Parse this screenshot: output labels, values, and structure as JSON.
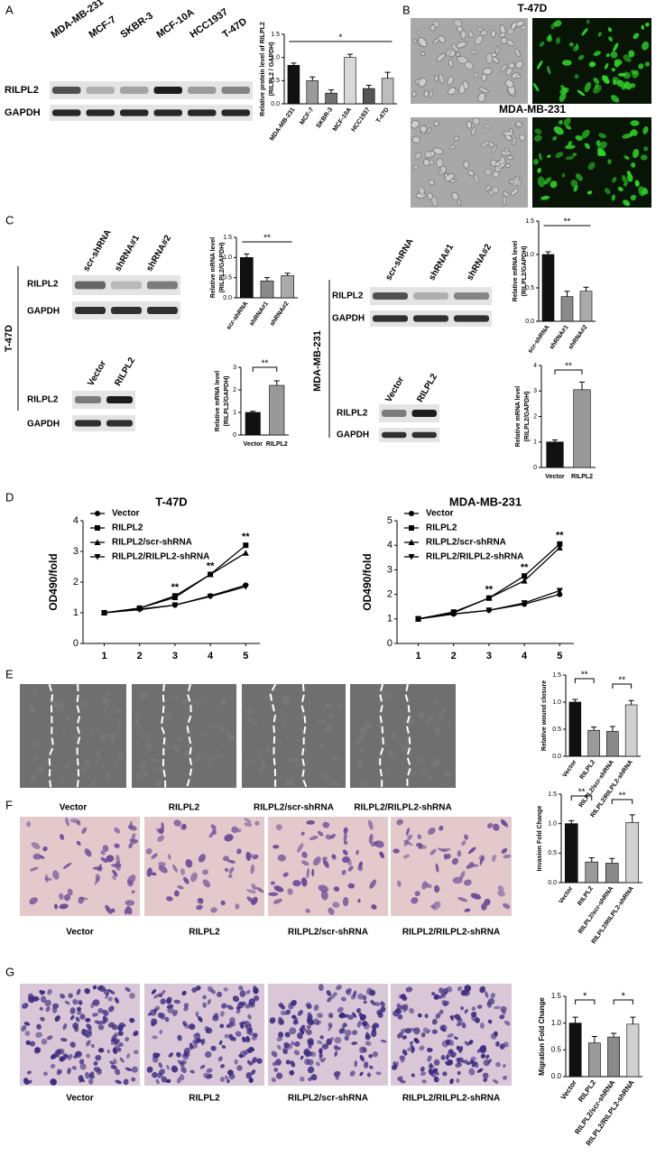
{
  "figure": {
    "panel_labels": [
      "A",
      "B",
      "C",
      "D",
      "E",
      "F",
      "G"
    ],
    "a_blot": {
      "lanes": [
        "MDA-MB-231",
        "MCF-7",
        "SKBR-3",
        "MCF-10A",
        "HCC1937",
        "T-47D"
      ],
      "rows": [
        "RILPL2",
        "GAPDH"
      ]
    },
    "b_images": {
      "titles": [
        "T-47D",
        "MDA-MB-231"
      ]
    },
    "c_blots": {
      "cell_lines": [
        "T-47D",
        "MDA-MB-231"
      ],
      "knockdown_lanes": [
        "scr-shRNA",
        "shRNA#1",
        "shRNA#2"
      ],
      "overexpression_lanes": [
        "Vector",
        "RILPL2"
      ],
      "rows": [
        "RILPL2",
        "GAPDH"
      ]
    },
    "captions": [
      "Vector",
      "RILPL2",
      "RILPL2/scr-shRNA",
      "RILPL2/RILPL2-shRNA"
    ]
  },
  "chart_data": [
    {
      "type": "bar",
      "categories": [
        "MDA-MB-231",
        "MCF-7",
        "SKBR-3",
        "MCF-10A",
        "HCC1937",
        "T-47D"
      ],
      "values": [
        0.83,
        0.5,
        0.23,
        1.0,
        0.33,
        0.55
      ],
      "errors": [
        0.05,
        0.08,
        0.07,
        0.07,
        0.07,
        0.13
      ],
      "colors": [
        "#111111",
        "#9a9a9a",
        "#707070",
        "#d8d8d8",
        "#555555",
        "#bdbdbd"
      ],
      "ylabel": [
        "Relative protein level of RILPL2",
        "(RILPL2 / GAPDH)"
      ],
      "ylim": [
        0,
        1.5
      ],
      "yticks": [
        {
          "value": 0,
          "label": "0.0"
        },
        0.5,
        {
          "value": 1,
          "label": "1.0"
        },
        1.5
      ],
      "annotations": [
        "*"
      ]
    },
    {
      "type": "bar",
      "categories": [
        "scr-shRNA",
        "shRNA#1",
        "shRNA#2"
      ],
      "values": [
        1.0,
        0.42,
        0.55
      ],
      "errors": [
        0.09,
        0.08,
        0.06
      ],
      "colors": [
        "#111111",
        "#8a8a8a",
        "#aaaaaa"
      ],
      "ylabel": [
        "Relative mRNA level",
        "(RILPL2/GAPDH)"
      ],
      "ylim": [
        0,
        1.5
      ],
      "yticks": [
        {
          "value": 0,
          "label": "0.0"
        },
        0.5,
        {
          "value": 1,
          "label": "1.0"
        },
        1.5
      ],
      "annotations": [
        "**"
      ]
    },
    {
      "type": "bar",
      "categories": [
        "Vector",
        "RILPL2"
      ],
      "values": [
        1.0,
        2.2
      ],
      "errors": [
        0.05,
        0.2
      ],
      "colors": [
        "#111111",
        "#999999"
      ],
      "ylabel": [
        "Relative mRNA level",
        "(RILPL2/GAPDH)"
      ],
      "ylim": [
        0,
        3
      ],
      "yticks": [
        0,
        1,
        2,
        3
      ],
      "annotations": [
        "**"
      ]
    },
    {
      "type": "bar",
      "categories": [
        "scr-shRNA",
        "shRNA#1",
        "shRNA#2"
      ],
      "values": [
        1.0,
        0.37,
        0.45
      ],
      "errors": [
        0.04,
        0.08,
        0.06
      ],
      "colors": [
        "#111111",
        "#8a8a8a",
        "#aaaaaa"
      ],
      "ylabel": [
        "Relative mRNA level",
        "(RILPL2/GAPDH)"
      ],
      "ylim": [
        0,
        1.5
      ],
      "yticks": [
        {
          "value": 0,
          "label": "0.0"
        },
        0.5,
        {
          "value": 1,
          "label": "1.0"
        },
        1.5
      ],
      "annotations": [
        "**"
      ]
    },
    {
      "type": "bar",
      "categories": [
        "Vector",
        "RILPL2"
      ],
      "values": [
        1.0,
        3.05
      ],
      "errors": [
        0.08,
        0.3
      ],
      "colors": [
        "#111111",
        "#999999"
      ],
      "ylabel": [
        "Relative mRNA level",
        "(RILPL2/GAPDH)"
      ],
      "ylim": [
        0,
        4
      ],
      "yticks": [
        0,
        1,
        2,
        3,
        4
      ],
      "annotations": [
        "**"
      ]
    },
    {
      "type": "line",
      "title": "T-47D",
      "x": [
        1,
        2,
        3,
        4,
        5
      ],
      "xlim": [
        0.4,
        5.4
      ],
      "xticks": [
        1,
        2,
        3,
        4,
        5
      ],
      "ylim": [
        0,
        4
      ],
      "yticks": [
        0,
        1,
        2,
        3,
        4
      ],
      "ylabel": "OD490/fold",
      "series": [
        {
          "name": "Vector",
          "color": "#000000",
          "marker": "circle",
          "values": [
            1.0,
            1.12,
            1.25,
            1.55,
            1.9
          ]
        },
        {
          "name": "RILPL2",
          "color": "#000000",
          "marker": "square",
          "values": [
            1.0,
            1.15,
            1.55,
            2.25,
            3.2
          ]
        },
        {
          "name": "RILPL2/scr-shRNA",
          "color": "#000000",
          "marker": "triangle-up",
          "values": [
            1.0,
            1.15,
            1.5,
            2.25,
            2.95
          ]
        },
        {
          "name": "RILPL2/RILPL2-shRNA",
          "color": "#000000",
          "marker": "triangle-down",
          "values": [
            1.0,
            1.1,
            1.25,
            1.53,
            1.85
          ]
        }
      ],
      "annotations": [
        {
          "x": 3,
          "text": "**"
        },
        {
          "x": 4,
          "text": "**"
        },
        {
          "x": 5,
          "text": "**"
        }
      ]
    },
    {
      "type": "line",
      "title": "MDA-MB-231",
      "x": [
        1,
        2,
        3,
        4,
        5
      ],
      "xlim": [
        0.4,
        5.4
      ],
      "xticks": [
        1,
        2,
        3,
        4,
        5
      ],
      "ylim": [
        0,
        5
      ],
      "yticks": [
        0,
        1,
        2,
        3,
        4,
        5
      ],
      "ylabel": "OD490/fold",
      "series": [
        {
          "name": "Vector",
          "color": "#000000",
          "marker": "circle",
          "values": [
            1.0,
            1.2,
            1.35,
            1.6,
            2.0
          ]
        },
        {
          "name": "RILPL2",
          "color": "#000000",
          "marker": "square",
          "values": [
            1.0,
            1.28,
            1.85,
            2.75,
            4.05
          ]
        },
        {
          "name": "RILPL2/scr-shRNA",
          "color": "#000000",
          "marker": "triangle-up",
          "values": [
            1.0,
            1.25,
            1.85,
            2.55,
            3.9
          ]
        },
        {
          "name": "RILPL2/RILPL2-shRNA",
          "color": "#000000",
          "marker": "triangle-down",
          "values": [
            1.0,
            1.2,
            1.35,
            1.65,
            2.15
          ]
        }
      ],
      "annotations": [
        {
          "x": 3,
          "text": "**"
        },
        {
          "x": 4,
          "text": "**"
        },
        {
          "x": 5,
          "text": "**"
        }
      ]
    },
    {
      "type": "bar",
      "categories": [
        "Vector",
        "RILPL2",
        "RILPL2/scr-shRNA",
        "RILPL2/RILPL2-shRNA"
      ],
      "values": [
        1.0,
        0.48,
        0.46,
        0.95
      ],
      "errors": [
        0.05,
        0.06,
        0.09,
        0.08
      ],
      "colors": [
        "#111111",
        "#9a9a9a",
        "#8a8a8a",
        "#d0d0d0"
      ],
      "ylabel": [
        "Relative wound closure"
      ],
      "ylim": [
        0,
        1.5
      ],
      "yticks": [
        {
          "value": 0,
          "label": "0.0"
        },
        0.5,
        {
          "value": 1,
          "label": "1.0"
        },
        1.5
      ],
      "annotations": [
        "**",
        "**"
      ]
    },
    {
      "type": "bar",
      "categories": [
        "Vector",
        "RILPL2",
        "RILPL2/scr-shRNA",
        "RILPL2/RILPL2-shRNA"
      ],
      "values": [
        1.0,
        0.35,
        0.33,
        1.02
      ],
      "errors": [
        0.05,
        0.07,
        0.08,
        0.13
      ],
      "colors": [
        "#111111",
        "#9a9a9a",
        "#8a8a8a",
        "#d0d0d0"
      ],
      "ylabel": [
        "Invasion Fold Change"
      ],
      "ylim": [
        0,
        1.5
      ],
      "yticks": [
        {
          "value": 0,
          "label": "0.0"
        },
        0.5,
        {
          "value": 1,
          "label": "1.0"
        },
        1.5
      ],
      "annotations": [
        "**",
        "**"
      ]
    },
    {
      "type": "bar",
      "categories": [
        "Vector",
        "RILPL2",
        "RILPL2/scr-shRNA",
        "RILPL2/RILPL2-shRNA"
      ],
      "values": [
        1.0,
        0.63,
        0.74,
        0.98
      ],
      "errors": [
        0.11,
        0.12,
        0.07,
        0.13
      ],
      "colors": [
        "#111111",
        "#9a9a9a",
        "#8a8a8a",
        "#d0d0d0"
      ],
      "ylabel": [
        "Migration Fold Change"
      ],
      "ylim": [
        0,
        1.5
      ],
      "yticks": [
        {
          "value": 0,
          "label": "0.0"
        },
        0.5,
        {
          "value": 1,
          "label": "1.0"
        },
        1.5
      ],
      "annotations": [
        "*",
        "*"
      ]
    }
  ]
}
